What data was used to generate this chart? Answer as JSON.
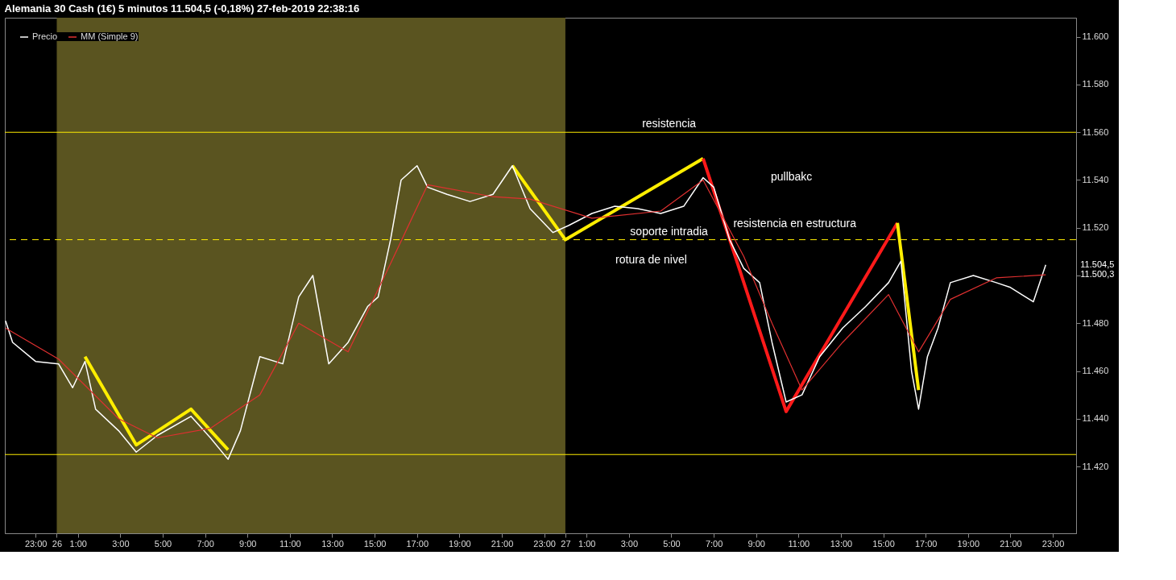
{
  "chart_data": {
    "type": "line",
    "title": "Alemania 30 Cash (1€)   5 minutos   11.504,5 (-0,18%)   27-feb-2019 22:38:16",
    "xlim": [
      "2019-02-25T21:33",
      "2019-02-28T00:06"
    ],
    "xticks": [
      {
        "value": "2019-02-25T23:00",
        "label": "23:00"
      },
      {
        "value": "2019-02-26T00:00",
        "label": "26"
      },
      {
        "value": "2019-02-26T01:00",
        "label": "1:00"
      },
      {
        "value": "2019-02-26T03:00",
        "label": "3:00"
      },
      {
        "value": "2019-02-26T05:00",
        "label": "5:00"
      },
      {
        "value": "2019-02-26T07:00",
        "label": "7:00"
      },
      {
        "value": "2019-02-26T09:00",
        "label": "9:00"
      },
      {
        "value": "2019-02-26T11:00",
        "label": "11:00"
      },
      {
        "value": "2019-02-26T13:00",
        "label": "13:00"
      },
      {
        "value": "2019-02-26T15:00",
        "label": "15:00"
      },
      {
        "value": "2019-02-26T17:00",
        "label": "17:00"
      },
      {
        "value": "2019-02-26T19:00",
        "label": "19:00"
      },
      {
        "value": "2019-02-26T21:00",
        "label": "21:00"
      },
      {
        "value": "2019-02-26T23:00",
        "label": "23:00"
      },
      {
        "value": "2019-02-27T00:00",
        "label": "27"
      },
      {
        "value": "2019-02-27T01:00",
        "label": "1:00"
      },
      {
        "value": "2019-02-27T03:00",
        "label": "3:00"
      },
      {
        "value": "2019-02-27T05:00",
        "label": "5:00"
      },
      {
        "value": "2019-02-27T07:00",
        "label": "7:00"
      },
      {
        "value": "2019-02-27T09:00",
        "label": "9:00"
      },
      {
        "value": "2019-02-27T11:00",
        "label": "11:00"
      },
      {
        "value": "2019-02-27T13:00",
        "label": "13:00"
      },
      {
        "value": "2019-02-27T15:00",
        "label": "15:00"
      },
      {
        "value": "2019-02-27T17:00",
        "label": "17:00"
      },
      {
        "value": "2019-02-27T19:00",
        "label": "19:00"
      },
      {
        "value": "2019-02-27T21:00",
        "label": "21:00"
      },
      {
        "value": "2019-02-27T23:00",
        "label": "23:00"
      }
    ],
    "ylim": [
      11392,
      11608
    ],
    "yticks": [
      {
        "value": 11420,
        "label": "11.420"
      },
      {
        "value": 11440,
        "label": "11.440"
      },
      {
        "value": 11460,
        "label": "11.460"
      },
      {
        "value": 11480,
        "label": "11.480"
      },
      {
        "value": 11500,
        "label": null
      },
      {
        "value": 11520,
        "label": "11.520"
      },
      {
        "value": 11540,
        "label": "11.540"
      },
      {
        "value": 11560,
        "label": "11.560"
      },
      {
        "value": 11580,
        "label": "11.580"
      },
      {
        "value": 11600,
        "label": "11.600"
      }
    ],
    "grid": false,
    "legend": "top left",
    "series": [
      {
        "name": "Precio",
        "color": "#ffffff",
        "x": [
          "2019-02-25T21:35",
          "2019-02-25T21:55",
          "2019-02-25T23:00",
          "2019-02-26T00:05",
          "2019-02-26T00:45",
          "2019-02-26T01:20",
          "2019-02-26T01:50",
          "2019-02-26T02:55",
          "2019-02-26T03:45",
          "2019-02-26T04:45",
          "2019-02-26T06:20",
          "2019-02-26T07:15",
          "2019-02-26T08:05",
          "2019-02-26T08:40",
          "2019-02-26T09:35",
          "2019-02-26T10:40",
          "2019-02-26T11:25",
          "2019-02-26T12:05",
          "2019-02-26T12:50",
          "2019-02-26T13:45",
          "2019-02-26T14:40",
          "2019-02-26T15:10",
          "2019-02-26T15:45",
          "2019-02-26T16:15",
          "2019-02-26T17:00",
          "2019-02-26T17:30",
          "2019-02-26T18:25",
          "2019-02-26T19:30",
          "2019-02-26T20:35",
          "2019-02-26T21:30",
          "2019-02-26T22:20",
          "2019-02-26T23:25",
          "2019-02-27T00:10",
          "2019-02-27T01:15",
          "2019-02-27T02:20",
          "2019-02-27T03:25",
          "2019-02-27T04:30",
          "2019-02-27T05:35",
          "2019-02-27T06:30",
          "2019-02-27T07:00",
          "2019-02-27T07:45",
          "2019-02-27T08:25",
          "2019-02-27T09:10",
          "2019-02-27T09:45",
          "2019-02-27T10:25",
          "2019-02-27T11:10",
          "2019-02-27T12:00",
          "2019-02-27T13:05",
          "2019-02-27T14:10",
          "2019-02-27T15:15",
          "2019-02-27T15:50",
          "2019-02-27T16:20",
          "2019-02-27T16:40",
          "2019-02-27T17:05",
          "2019-02-27T17:35",
          "2019-02-27T18:10",
          "2019-02-27T19:15",
          "2019-02-27T20:20",
          "2019-02-27T21:00",
          "2019-02-27T22:05",
          "2019-02-27T22:40"
        ],
        "values": [
          11481,
          11472,
          11464,
          11463,
          11453,
          11464,
          11444,
          11435,
          11426,
          11433,
          11441,
          11432,
          11423,
          11435,
          11466,
          11463,
          11491,
          11500,
          11463,
          11472,
          11487,
          11491,
          11515,
          11540,
          11546,
          11537,
          11534,
          11531,
          11534,
          11546,
          11528,
          11518,
          11521,
          11526,
          11529,
          11528,
          11526,
          11529,
          11541,
          11537,
          11515,
          11503,
          11497,
          11472,
          11447,
          11450,
          11466,
          11478,
          11487,
          11497,
          11506,
          11460,
          11444,
          11466,
          11478,
          11497,
          11500,
          11497,
          11495,
          11489,
          11504.5
        ]
      },
      {
        "name": "MM (Simple 9)",
        "color": "#e03030",
        "x": [
          "2019-02-25T21:35",
          "2019-02-26T00:05",
          "2019-02-26T02:55",
          "2019-02-26T04:45",
          "2019-02-26T07:15",
          "2019-02-26T09:35",
          "2019-02-26T11:25",
          "2019-02-26T13:45",
          "2019-02-26T15:45",
          "2019-02-26T17:30",
          "2019-02-26T20:35",
          "2019-02-26T22:20",
          "2019-02-27T01:15",
          "2019-02-27T04:30",
          "2019-02-27T06:30",
          "2019-02-27T08:25",
          "2019-02-27T09:45",
          "2019-02-27T11:10",
          "2019-02-27T13:05",
          "2019-02-27T15:15",
          "2019-02-27T16:40",
          "2019-02-27T18:10",
          "2019-02-27T20:20",
          "2019-02-27T22:40"
        ],
        "values": [
          11478,
          11465,
          11440,
          11432,
          11436,
          11450,
          11480,
          11468,
          11505,
          11538,
          11533,
          11532,
          11524,
          11527,
          11540,
          11508,
          11480,
          11452,
          11472,
          11492,
          11468,
          11490,
          11499,
          11500.3
        ]
      },
      {
        "type": "line",
        "color": "#ffee00",
        "x": [
          "2019-02-26T01:20",
          "2019-02-26T03:45",
          "2019-02-26T06:20",
          "2019-02-26T08:05"
        ],
        "values": [
          11466,
          11429,
          11444,
          11427
        ]
      },
      {
        "type": "line",
        "color": "#ffee00",
        "x": [
          "2019-02-26T21:30",
          "2019-02-27T00:00",
          "2019-02-27T06:30"
        ],
        "values": [
          11546,
          11515,
          11549
        ]
      },
      {
        "type": "line",
        "color": "#ff1a1a",
        "x": [
          "2019-02-27T06:30",
          "2019-02-27T10:25",
          "2019-02-27T15:40"
        ],
        "values": [
          11549,
          11443,
          11522
        ]
      },
      {
        "type": "line",
        "color": "#ffee00",
        "x": [
          "2019-02-27T15:40",
          "2019-02-27T16:40"
        ],
        "values": [
          11522,
          11452
        ]
      }
    ],
    "bands": [
      {
        "axis": "x",
        "from": "2019-02-26T00:00",
        "to": "2019-02-27T00:00",
        "color": "#5a5420"
      }
    ],
    "ref_lines": [
      {
        "axis": "y",
        "value": 11560,
        "color": "#ffee00",
        "line_style": "solid",
        "label": "resistencia"
      },
      {
        "axis": "y",
        "value": 11515,
        "color": "#ffee00",
        "line_style": "dashed",
        "label": "soporte intradia"
      },
      {
        "axis": "y",
        "value": 11425,
        "color": "#ffee00",
        "line_style": "solid"
      }
    ],
    "annotations": [
      "pullbakc",
      "rotura de nivel",
      "resistencia en estructura",
      "11.504,5",
      "11.500,3"
    ]
  }
}
